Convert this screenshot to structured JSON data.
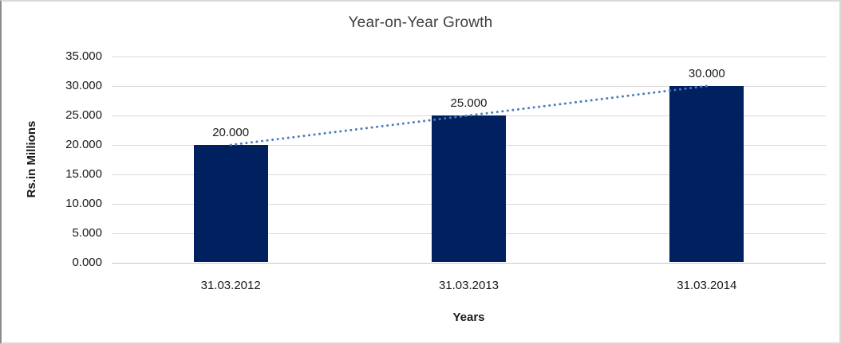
{
  "chart_data": {
    "type": "bar",
    "title": "Year-on-Year Growth",
    "xlabel": "Years",
    "ylabel": "Rs.in Millions",
    "categories": [
      "31.03.2012",
      "31.03.2013",
      "31.03.2014"
    ],
    "values": [
      20,
      25,
      30
    ],
    "data_labels": [
      "20.000",
      "25.000",
      "30.000"
    ],
    "y_tick_labels": [
      "35.000",
      "30.000",
      "25.000",
      "20.000",
      "15.000",
      "10.000",
      "5.000",
      "0.000"
    ],
    "y_tick_values": [
      35,
      30,
      25,
      20,
      15,
      10,
      5,
      0
    ],
    "ylim": [
      0,
      35
    ],
    "grid": true,
    "legend": "none",
    "trendline": {
      "style": "dotted",
      "from_category": "31.03.2012",
      "from_value": 20,
      "to_category": "31.03.2014",
      "to_value": 30
    },
    "colors": {
      "bar": "#002060",
      "trendline": "#4a7ebb",
      "gridline": "#d9d9d9",
      "axis_line": "#c6c6c6",
      "title_text": "#3f3f3f",
      "label_text": "#1a1a1a"
    }
  }
}
